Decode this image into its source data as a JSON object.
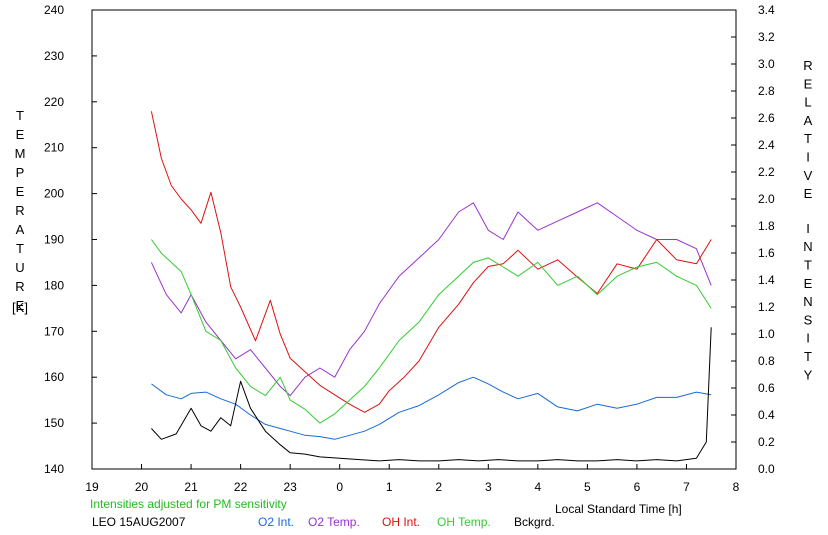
{
  "chart_data": {
    "type": "line",
    "xlabel": "Local Standard Time [h]",
    "ylabel_left": "TEMPERATURE",
    "ylabel_left_unit": "[K]",
    "ylabel_right": "RELATIVE INTENSITY",
    "x_tick_labels": [
      "19",
      "20",
      "21",
      "22",
      "23",
      "0",
      "1",
      "2",
      "3",
      "4",
      "5",
      "6",
      "7",
      "8"
    ],
    "x_range": [
      19,
      32
    ],
    "y_left_range": [
      140,
      240
    ],
    "y_left_ticks": [
      140,
      150,
      160,
      170,
      180,
      190,
      200,
      210,
      220,
      230,
      240
    ],
    "y_right_range": [
      0.0,
      3.4
    ],
    "y_right_ticks": [
      "0.0",
      "0.2",
      "0.4",
      "0.6",
      "0.8",
      "1.0",
      "1.2",
      "1.4",
      "1.6",
      "1.8",
      "2.0",
      "2.2",
      "2.4",
      "2.6",
      "2.8",
      "3.0",
      "3.2",
      "3.4"
    ],
    "grid": false,
    "note": "Intensities adjusted for PM sensitivity",
    "station_label": "LEO 15AUG2007",
    "legend_placement": "bottom",
    "series": [
      {
        "name": "O2 Int.",
        "axis": "right",
        "color": "#1a6ad6",
        "x": [
          20.2,
          20.5,
          20.8,
          21.0,
          21.3,
          21.6,
          21.9,
          22.2,
          22.5,
          22.8,
          23.0,
          23.3,
          23.6,
          23.9,
          24.2,
          24.5,
          24.8,
          25.2,
          25.6,
          26.0,
          26.4,
          26.7,
          27.0,
          27.3,
          27.6,
          28.0,
          28.4,
          28.8,
          29.2,
          29.6,
          30.0,
          30.4,
          30.8,
          31.2,
          31.5
        ],
        "y": [
          0.63,
          0.55,
          0.52,
          0.56,
          0.57,
          0.52,
          0.48,
          0.4,
          0.33,
          0.3,
          0.28,
          0.25,
          0.24,
          0.22,
          0.25,
          0.28,
          0.33,
          0.42,
          0.47,
          0.55,
          0.64,
          0.68,
          0.63,
          0.57,
          0.52,
          0.56,
          0.46,
          0.43,
          0.48,
          0.45,
          0.48,
          0.53,
          0.53,
          0.57,
          0.55
        ]
      },
      {
        "name": "O2 Temp.",
        "axis": "left",
        "color": "#9933cc",
        "x": [
          20.2,
          20.5,
          20.8,
          21.0,
          21.3,
          21.6,
          21.9,
          22.2,
          22.5,
          22.8,
          23.0,
          23.3,
          23.6,
          23.9,
          24.2,
          24.5,
          24.8,
          25.2,
          25.6,
          26.0,
          26.4,
          26.7,
          27.0,
          27.3,
          27.6,
          28.0,
          28.4,
          28.8,
          29.2,
          29.6,
          30.0,
          30.4,
          30.8,
          31.2,
          31.5
        ],
        "y": [
          185,
          178,
          174,
          178,
          172,
          168,
          164,
          166,
          162,
          158,
          156,
          160,
          162,
          160,
          166,
          170,
          176,
          182,
          186,
          190,
          196,
          198,
          192,
          190,
          196,
          192,
          194,
          196,
          198,
          195,
          192,
          190,
          190,
          188,
          180
        ]
      },
      {
        "name": "OH Int.",
        "axis": "right",
        "color": "#dd1111",
        "x": [
          20.2,
          20.4,
          20.6,
          20.8,
          21.0,
          21.2,
          21.4,
          21.6,
          21.8,
          22.0,
          22.3,
          22.6,
          22.8,
          23.0,
          23.3,
          23.6,
          23.9,
          24.2,
          24.5,
          24.8,
          25.0,
          25.3,
          25.6,
          26.0,
          26.4,
          26.7,
          27.0,
          27.3,
          27.6,
          28.0,
          28.4,
          28.8,
          29.2,
          29.6,
          30.0,
          30.4,
          30.8,
          31.2,
          31.5
        ],
        "y": [
          2.65,
          2.3,
          2.1,
          2.0,
          1.92,
          1.82,
          2.05,
          1.75,
          1.35,
          1.2,
          0.95,
          1.25,
          1.0,
          0.82,
          0.72,
          0.62,
          0.55,
          0.48,
          0.42,
          0.48,
          0.58,
          0.68,
          0.8,
          1.05,
          1.22,
          1.38,
          1.5,
          1.52,
          1.62,
          1.48,
          1.55,
          1.42,
          1.3,
          1.52,
          1.48,
          1.7,
          1.55,
          1.52,
          1.7
        ]
      },
      {
        "name": "OH Temp.",
        "axis": "left",
        "color": "#33cc33",
        "x": [
          20.2,
          20.4,
          20.6,
          20.8,
          21.0,
          21.3,
          21.6,
          21.9,
          22.2,
          22.5,
          22.8,
          23.0,
          23.3,
          23.6,
          23.9,
          24.2,
          24.5,
          24.8,
          25.2,
          25.6,
          26.0,
          26.4,
          26.7,
          27.0,
          27.3,
          27.6,
          28.0,
          28.4,
          28.8,
          29.2,
          29.6,
          30.0,
          30.4,
          30.8,
          31.2,
          31.5
        ],
        "y": [
          190,
          187,
          185,
          183,
          178,
          170,
          168,
          162,
          158,
          156,
          160,
          155,
          153,
          150,
          152,
          155,
          158,
          162,
          168,
          172,
          178,
          182,
          185,
          186,
          184,
          182,
          185,
          180,
          182,
          178,
          182,
          184,
          185,
          182,
          180,
          175
        ]
      },
      {
        "name": "Bckgrd.",
        "axis": "right",
        "color": "#000000",
        "x": [
          20.2,
          20.4,
          20.7,
          21.0,
          21.2,
          21.4,
          21.6,
          21.8,
          22.0,
          22.2,
          22.5,
          22.8,
          23.0,
          23.3,
          23.6,
          24.0,
          24.4,
          24.8,
          25.2,
          25.6,
          26.0,
          26.4,
          26.8,
          27.2,
          27.6,
          28.0,
          28.4,
          28.8,
          29.2,
          29.6,
          30.0,
          30.4,
          30.8,
          31.2,
          31.4,
          31.5
        ],
        "y": [
          0.3,
          0.22,
          0.26,
          0.45,
          0.32,
          0.28,
          0.38,
          0.32,
          0.65,
          0.45,
          0.28,
          0.18,
          0.12,
          0.11,
          0.09,
          0.08,
          0.07,
          0.06,
          0.07,
          0.06,
          0.06,
          0.07,
          0.06,
          0.07,
          0.06,
          0.06,
          0.07,
          0.06,
          0.06,
          0.07,
          0.06,
          0.07,
          0.06,
          0.08,
          0.2,
          1.05
        ]
      }
    ]
  }
}
